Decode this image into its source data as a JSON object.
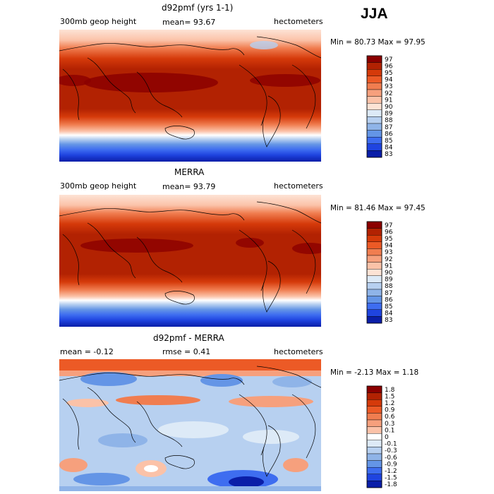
{
  "season": "JJA",
  "chart_data": [
    {
      "type": "heatmap",
      "title": "d92pmf (yrs 1-1)",
      "field": "300mb geop height",
      "stat_text": "mean=  93.67",
      "units": "hectometers",
      "minmax_text": "Min =  80.73 Max =   97.95",
      "mean": 93.67,
      "min": 80.73,
      "max": 97.95,
      "colorbar_levels": [
        "97",
        "96",
        "95",
        "94",
        "93",
        "92",
        "91",
        "90",
        "89",
        "88",
        "87",
        "86",
        "85",
        "84",
        "83"
      ],
      "colorbar_colors": [
        "#8b0000",
        "#b22202",
        "#d53a0a",
        "#ec5a26",
        "#f07d50",
        "#f6a07d",
        "#fbc2a8",
        "#fde3d5",
        "#ddeaf7",
        "#b7d0f0",
        "#8fb4e8",
        "#6495e6",
        "#3e6df0",
        "#1f44e0",
        "#0a1ea8"
      ]
    },
    {
      "type": "heatmap",
      "title": "MERRA",
      "field": "300mb geop height",
      "stat_text": "mean=  93.79",
      "units": "hectometers",
      "minmax_text": "Min =  81.46 Max =   97.45",
      "mean": 93.79,
      "min": 81.46,
      "max": 97.45,
      "colorbar_levels": [
        "97",
        "96",
        "95",
        "94",
        "93",
        "92",
        "91",
        "90",
        "89",
        "88",
        "87",
        "86",
        "85",
        "84",
        "83"
      ],
      "colorbar_colors": [
        "#8b0000",
        "#b22202",
        "#d53a0a",
        "#ec5a26",
        "#f07d50",
        "#f6a07d",
        "#fbc2a8",
        "#fde3d5",
        "#ddeaf7",
        "#b7d0f0",
        "#8fb4e8",
        "#6495e6",
        "#3e6df0",
        "#1f44e0",
        "#0a1ea8"
      ]
    },
    {
      "type": "heatmap",
      "title": "d92pmf - MERRA",
      "mean_text": "mean =  -0.12",
      "rmse_text": "rmse =    0.41",
      "units": "hectometers",
      "minmax_text": "Min =  -2.13 Max =    1.18",
      "mean": -0.12,
      "rmse": 0.41,
      "min": -2.13,
      "max": 1.18,
      "colorbar_levels": [
        "1.8",
        "1.5",
        "1.2",
        "0.9",
        "0.6",
        "0.3",
        "0.1",
        "0",
        "-0.1",
        "-0.3",
        "-0.6",
        "-0.9",
        "-1.2",
        "-1.5",
        "-1.8"
      ],
      "colorbar_colors": [
        "#8b0000",
        "#b22202",
        "#d53a0a",
        "#ec5a26",
        "#f07d50",
        "#f6a07d",
        "#fbc2a8",
        "#ffffff",
        "#ddeaf7",
        "#b7d0f0",
        "#8fb4e8",
        "#6495e6",
        "#3e6df0",
        "#1f44e0",
        "#0a1ea8"
      ]
    }
  ]
}
